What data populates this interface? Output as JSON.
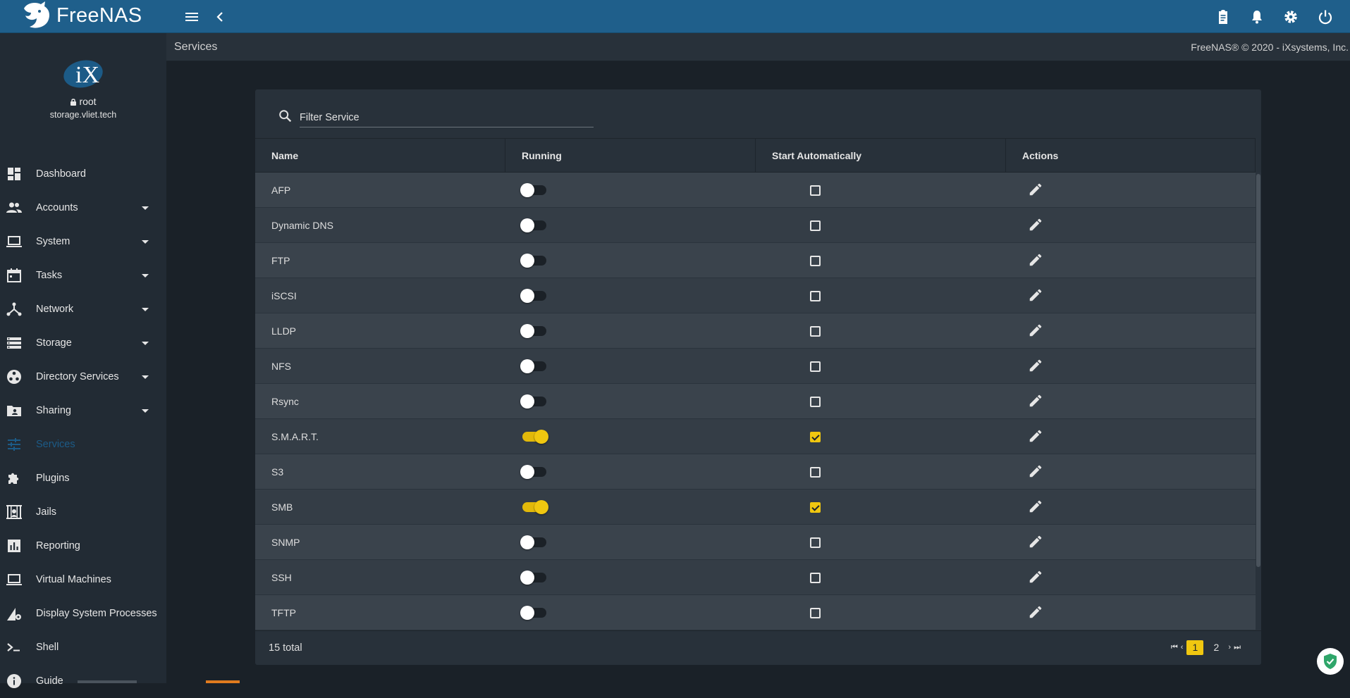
{
  "app": {
    "brand": "FreeNAS",
    "accent_color": "#1f5f8b",
    "highlight_color": "#f0c710"
  },
  "topbar": {
    "menu_icon": "menu-icon",
    "back_icon": "chevron-left-icon",
    "right_icons": [
      "clipboard-icon",
      "bell-icon",
      "gear-icon",
      "power-icon"
    ]
  },
  "user": {
    "name": "root",
    "host": "storage.vliet.tech"
  },
  "sidebar": {
    "items": [
      {
        "label": "Dashboard",
        "icon": "dashboard-icon",
        "caret": false
      },
      {
        "label": "Accounts",
        "icon": "people-icon",
        "caret": true
      },
      {
        "label": "System",
        "icon": "laptop-icon",
        "caret": true
      },
      {
        "label": "Tasks",
        "icon": "calendar-icon",
        "caret": true
      },
      {
        "label": "Network",
        "icon": "network-icon",
        "caret": true
      },
      {
        "label": "Storage",
        "icon": "storage-icon",
        "caret": true
      },
      {
        "label": "Directory Services",
        "icon": "directory-icon",
        "caret": true
      },
      {
        "label": "Sharing",
        "icon": "sharing-icon",
        "caret": true
      },
      {
        "label": "Services",
        "icon": "sliders-icon",
        "caret": false,
        "active": true
      },
      {
        "label": "Plugins",
        "icon": "puzzle-icon",
        "caret": false
      },
      {
        "label": "Jails",
        "icon": "jail-icon",
        "caret": false
      },
      {
        "label": "Reporting",
        "icon": "chart-icon",
        "caret": false
      },
      {
        "label": "Virtual Machines",
        "icon": "laptop-icon",
        "caret": false
      },
      {
        "label": "Display System Processes",
        "icon": "processes-icon",
        "caret": false
      },
      {
        "label": "Shell",
        "icon": "terminal-icon",
        "caret": false
      },
      {
        "label": "Guide",
        "icon": "info-icon",
        "caret": false
      }
    ]
  },
  "breadcrumb": {
    "title": "Services",
    "copyright": "FreeNAS® © 2020 - iXsystems, Inc."
  },
  "services": {
    "filter_placeholder": "Filter Service",
    "columns": {
      "name": "Name",
      "running": "Running",
      "start_auto": "Start Automatically",
      "actions": "Actions"
    },
    "rows": [
      {
        "name": "AFP",
        "running": false,
        "auto": false
      },
      {
        "name": "Dynamic DNS",
        "running": false,
        "auto": false
      },
      {
        "name": "FTP",
        "running": false,
        "auto": false
      },
      {
        "name": "iSCSI",
        "running": false,
        "auto": false
      },
      {
        "name": "LLDP",
        "running": false,
        "auto": false
      },
      {
        "name": "NFS",
        "running": false,
        "auto": false
      },
      {
        "name": "Rsync",
        "running": false,
        "auto": false
      },
      {
        "name": "S.M.A.R.T.",
        "running": true,
        "auto": true
      },
      {
        "name": "S3",
        "running": false,
        "auto": false
      },
      {
        "name": "SMB",
        "running": true,
        "auto": true
      },
      {
        "name": "SNMP",
        "running": false,
        "auto": false
      },
      {
        "name": "SSH",
        "running": false,
        "auto": false
      },
      {
        "name": "TFTP",
        "running": false,
        "auto": false
      }
    ],
    "total": "15 total",
    "pages": [
      "1",
      "2"
    ],
    "current_page": "1"
  }
}
